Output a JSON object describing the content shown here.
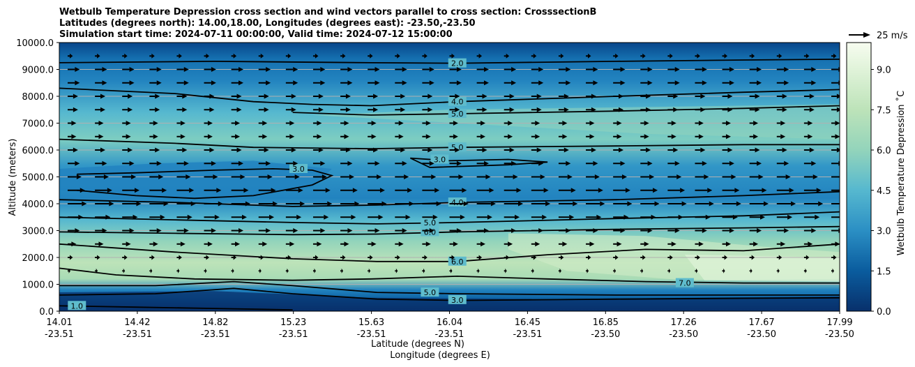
{
  "chart_data": {
    "type": "contourf",
    "title_lines": [
      "Wetbulb Temperature Depression cross section and wind vectors parallel to cross section: CrosssectionB",
      "Latitudes (degrees north): 14.00,18.00, Longitudes (degrees east): -23.50,-23.50",
      "Simulation start time: 2024-07-11 00:00:00, Valid time: 2024-07-12 15:00:00"
    ],
    "ylabel": "Altitude (meters)",
    "xlabel_lat": "Latitude (degrees N)",
    "xlabel_lon": "Longitude (degrees E)",
    "y_ticks": [
      0,
      1000,
      2000,
      3000,
      4000,
      5000,
      6000,
      7000,
      8000,
      9000,
      10000
    ],
    "y_tick_labels": [
      "0.0",
      "1000.0",
      "2000.0",
      "3000.0",
      "4000.0",
      "5000.0",
      "6000.0",
      "7000.0",
      "8000.0",
      "9000.0",
      "10000.0"
    ],
    "ylim": [
      0,
      10000
    ],
    "x_lat_labels": [
      "14.01",
      "14.42",
      "14.82",
      "15.23",
      "15.63",
      "16.04",
      "16.45",
      "16.85",
      "17.26",
      "17.67",
      "17.99"
    ],
    "x_lon_labels": [
      "-23.51",
      "-23.51",
      "-23.51",
      "-23.51",
      "-23.51",
      "-23.51",
      "-23.51",
      "-23.50",
      "-23.50",
      "-23.50",
      "-23.50"
    ],
    "xlim": [
      14.01,
      17.99
    ],
    "colorbar": {
      "label": "Wetbulb Temperature Depression ˚C",
      "range": [
        0,
        10
      ],
      "tick_values": [
        0,
        1.5,
        3,
        4.5,
        6,
        7.5,
        9
      ],
      "tick_labels": [
        "0.0",
        "1.5",
        "3.0",
        "4.5",
        "6.0",
        "7.5",
        "9.0"
      ],
      "colors": [
        "#08306b",
        "#08468a",
        "#0a5c9e",
        "#1570b0",
        "#2283bf",
        "#3196c7",
        "#43a8cd",
        "#56b8cf",
        "#69c4c8",
        "#7dcdc1",
        "#93d4bb",
        "#a8dbb5",
        "#bde3b9",
        "#cfebc6",
        "#e0f3d9",
        "#f2f9ec"
      ]
    },
    "vector_key": {
      "label": "25 m/s",
      "speed": 25
    },
    "wind_rows": [
      {
        "altitude": 9500,
        "speed": 6
      },
      {
        "altitude": 9000,
        "speed": 14
      },
      {
        "altitude": 8500,
        "speed": 14
      },
      {
        "altitude": 8000,
        "speed": 12
      },
      {
        "altitude": 7500,
        "speed": 12
      },
      {
        "altitude": 7000,
        "speed": 10
      },
      {
        "altitude": 6500,
        "speed": 10
      },
      {
        "altitude": 6000,
        "speed": 12
      },
      {
        "altitude": 5500,
        "speed": 14
      },
      {
        "altitude": 5000,
        "speed": 16
      },
      {
        "altitude": 4500,
        "speed": 20
      },
      {
        "altitude": 4000,
        "speed": 22
      },
      {
        "altitude": 3500,
        "speed": 18
      },
      {
        "altitude": 3000,
        "speed": 14
      },
      {
        "altitude": 2500,
        "speed": 10
      },
      {
        "altitude": 2000,
        "speed": 6
      },
      {
        "altitude": 1500,
        "speed": 3
      }
    ],
    "contour_lines": [
      {
        "level": "2.0",
        "pts": [
          [
            14.01,
            9250
          ],
          [
            14.8,
            9300
          ],
          [
            15.6,
            9250
          ],
          [
            16.04,
            9230
          ],
          [
            16.85,
            9300
          ],
          [
            17.5,
            9350
          ],
          [
            17.99,
            9380
          ]
        ],
        "label_at": [
          16.04,
          9230
        ]
      },
      {
        "level": "4.0",
        "pts": [
          [
            14.01,
            8300
          ],
          [
            14.6,
            8100
          ],
          [
            15.0,
            7800
          ],
          [
            15.3,
            7700
          ],
          [
            15.6,
            7650
          ],
          [
            16.04,
            7800
          ],
          [
            16.85,
            8000
          ],
          [
            17.5,
            8150
          ],
          [
            17.99,
            8250
          ]
        ],
        "label_at": [
          16.04,
          7800
        ]
      },
      {
        "level": "5.0",
        "pts": [
          [
            15.2,
            7400
          ],
          [
            15.6,
            7300
          ],
          [
            16.04,
            7350
          ],
          [
            16.85,
            7450
          ],
          [
            17.5,
            7550
          ],
          [
            17.99,
            7650
          ]
        ],
        "label_at": [
          16.04,
          7350
        ]
      },
      {
        "level": "5.0",
        "pts": [
          [
            14.01,
            6400
          ],
          [
            14.6,
            6250
          ],
          [
            15.0,
            6100
          ],
          [
            15.6,
            6050
          ],
          [
            16.04,
            6100
          ],
          [
            16.85,
            6150
          ],
          [
            17.5,
            6200
          ],
          [
            17.99,
            6200
          ]
        ],
        "label_at": [
          16.04,
          6100
        ]
      },
      {
        "level": "3.0",
        "pts": [
          [
            15.8,
            5700
          ],
          [
            16.0,
            5600
          ],
          [
            16.3,
            5650
          ],
          [
            16.5,
            5550
          ],
          [
            16.3,
            5450
          ],
          [
            15.9,
            5350
          ],
          [
            15.8,
            5700
          ]
        ],
        "label_at": [
          15.95,
          5650
        ]
      },
      {
        "level": "3.0",
        "pts": [
          [
            14.1,
            5100
          ],
          [
            14.4,
            5150
          ],
          [
            14.8,
            5250
          ],
          [
            15.1,
            5300
          ],
          [
            15.3,
            5250
          ],
          [
            15.4,
            5050
          ],
          [
            15.3,
            4700
          ],
          [
            15.0,
            4300
          ],
          [
            14.7,
            4200
          ],
          [
            14.4,
            4300
          ],
          [
            14.1,
            4500
          ]
        ],
        "label_at": [
          15.23,
          5300
        ]
      },
      {
        "level": "4.0",
        "pts": [
          [
            14.01,
            4150
          ],
          [
            14.6,
            4050
          ],
          [
            15.2,
            3900
          ],
          [
            15.63,
            3950
          ],
          [
            16.04,
            4050
          ],
          [
            16.85,
            4150
          ],
          [
            17.5,
            4300
          ],
          [
            17.99,
            4450
          ]
        ],
        "label_at": [
          16.04,
          4050
        ]
      },
      {
        "level": "5.0",
        "pts": [
          [
            14.01,
            3500
          ],
          [
            14.6,
            3400
          ],
          [
            15.2,
            3300
          ],
          [
            15.63,
            3250
          ],
          [
            16.04,
            3300
          ],
          [
            16.85,
            3450
          ],
          [
            17.5,
            3550
          ],
          [
            17.99,
            3700
          ]
        ],
        "label_at": [
          15.9,
          3300
        ]
      },
      {
        "level": "6.0",
        "pts": [
          [
            14.01,
            2950
          ],
          [
            14.6,
            2900
          ],
          [
            15.2,
            2850
          ],
          [
            15.63,
            2870
          ],
          [
            16.04,
            2950
          ],
          [
            16.85,
            3050
          ],
          [
            17.5,
            3100
          ],
          [
            17.99,
            3150
          ]
        ],
        "label_at": [
          15.9,
          2950
        ]
      },
      {
        "level": "6.0",
        "pts": [
          [
            14.01,
            2500
          ],
          [
            14.6,
            2200
          ],
          [
            15.2,
            1950
          ],
          [
            15.63,
            1850
          ],
          [
            16.04,
            1850
          ],
          [
            16.5,
            2100
          ],
          [
            17.0,
            2300
          ],
          [
            17.5,
            2250
          ],
          [
            17.99,
            2500
          ]
        ],
        "label_at": [
          16.04,
          1850
        ]
      },
      {
        "level": "7.0",
        "pts": [
          [
            14.01,
            1600
          ],
          [
            14.3,
            1350
          ],
          [
            14.7,
            1200
          ],
          [
            15.2,
            1150
          ],
          [
            15.6,
            1200
          ],
          [
            16.04,
            1300
          ],
          [
            16.5,
            1200
          ],
          [
            17.0,
            1100
          ],
          [
            17.5,
            1050
          ],
          [
            17.99,
            1050
          ]
        ],
        "label_at": [
          17.2,
          1050
        ]
      },
      {
        "level": "5.0",
        "pts": [
          [
            14.01,
            950
          ],
          [
            14.5,
            950
          ],
          [
            14.9,
            1100
          ],
          [
            15.2,
            950
          ],
          [
            15.63,
            700
          ],
          [
            16.04,
            650
          ],
          [
            16.85,
            600
          ],
          [
            17.5,
            600
          ],
          [
            17.99,
            600
          ]
        ],
        "label_at": [
          15.9,
          700
        ]
      },
      {
        "level": "3.0",
        "pts": [
          [
            14.01,
            600
          ],
          [
            14.5,
            650
          ],
          [
            14.9,
            850
          ],
          [
            15.2,
            650
          ],
          [
            15.63,
            450
          ],
          [
            16.04,
            400
          ],
          [
            16.85,
            450
          ],
          [
            17.5,
            480
          ],
          [
            17.99,
            500
          ]
        ],
        "label_at": [
          16.04,
          420
        ]
      },
      {
        "level": "1.0",
        "pts": [
          [
            14.01,
            200
          ],
          [
            14.4,
            150
          ],
          [
            14.8,
            100
          ],
          [
            15.2,
            50
          ]
        ],
        "label_at": [
          14.1,
          200
        ]
      }
    ]
  }
}
